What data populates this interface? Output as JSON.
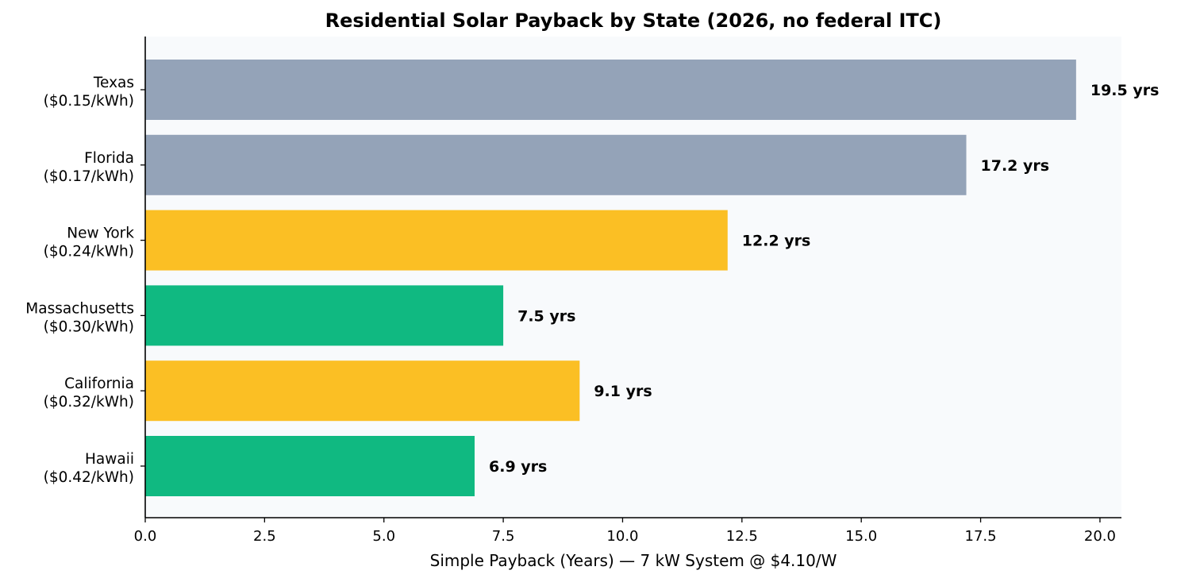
{
  "chart_data": {
    "type": "bar",
    "orientation": "horizontal",
    "title": "Residential Solar Payback by State (2026, no federal ITC)",
    "xlabel": "Simple Payback (Years) — 7 kW System @ $4.10/W",
    "ylabel": "",
    "xlim": [
      0,
      20.45
    ],
    "x_ticks": [
      "0.0",
      "2.5",
      "5.0",
      "7.5",
      "10.0",
      "12.5",
      "15.0",
      "17.5",
      "20.0"
    ],
    "x_tick_values": [
      0,
      2.5,
      5,
      7.5,
      10,
      12.5,
      15,
      17.5,
      20
    ],
    "grid": false,
    "legend": "none",
    "background_color": "#f8fafc",
    "categories": [
      {
        "name": "Texas",
        "rate": "($0.15/kWh)",
        "value": 19.5,
        "label": "19.5 yrs",
        "color": "#94a3b8"
      },
      {
        "name": "Florida",
        "rate": "($0.17/kWh)",
        "value": 17.2,
        "label": "17.2 yrs",
        "color": "#94a3b8"
      },
      {
        "name": "New York",
        "rate": "($0.24/kWh)",
        "value": 12.2,
        "label": "12.2 yrs",
        "color": "#fbbf24"
      },
      {
        "name": "Massachusetts",
        "rate": "($0.30/kWh)",
        "value": 7.5,
        "label": "7.5 yrs",
        "color": "#10b981"
      },
      {
        "name": "California",
        "rate": "($0.32/kWh)",
        "value": 9.1,
        "label": "9.1 yrs",
        "color": "#fbbf24"
      },
      {
        "name": "Hawaii",
        "rate": "($0.42/kWh)",
        "value": 6.9,
        "label": "6.9 yrs",
        "color": "#10b981"
      }
    ]
  }
}
